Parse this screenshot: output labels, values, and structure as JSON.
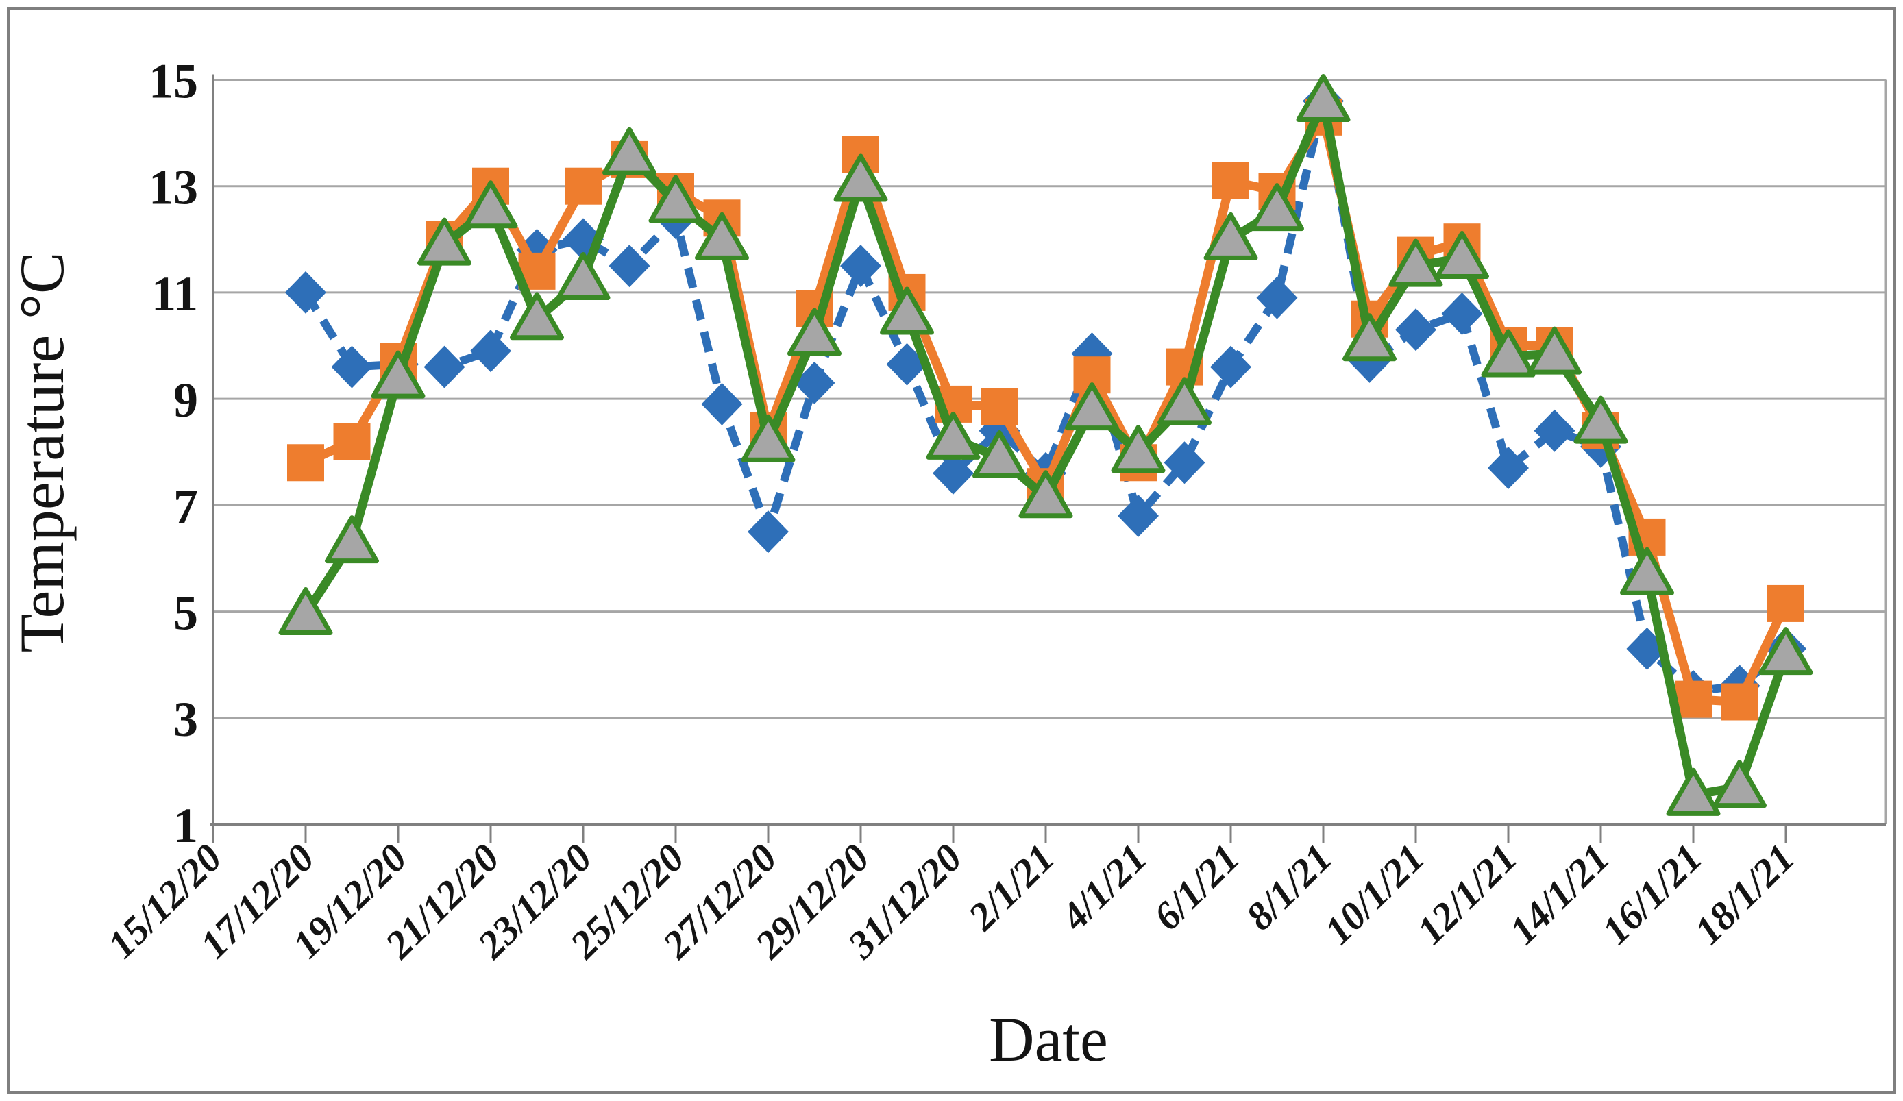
{
  "chart_data": {
    "type": "line",
    "title": "",
    "xlabel": "Date",
    "ylabel": "Temperature °C",
    "ylim": [
      1,
      15
    ],
    "y_ticks": [
      1,
      3,
      5,
      7,
      9,
      11,
      13,
      15
    ],
    "grid": true,
    "legend": false,
    "x_tick_labels": [
      "15/12/20",
      "17/12/20",
      "19/12/20",
      "21/12/20",
      "23/12/20",
      "25/12/20",
      "27/12/20",
      "29/12/20",
      "31/12/20",
      "2/1/21",
      "4/1/21",
      "6/1/21",
      "8/1/21",
      "10/1/21",
      "12/1/21",
      "14/1/21",
      "16/1/21",
      "18/1/21"
    ],
    "dates": [
      "17/12/20",
      "18/12/20",
      "19/12/20",
      "20/12/20",
      "21/12/20",
      "22/12/20",
      "23/12/20",
      "24/12/20",
      "25/12/20",
      "26/12/20",
      "27/12/20",
      "28/12/20",
      "29/12/20",
      "30/12/20",
      "31/12/20",
      "1/1/21",
      "2/1/21",
      "3/1/21",
      "4/1/21",
      "5/1/21",
      "6/1/21",
      "7/1/21",
      "8/1/21",
      "9/1/21",
      "10/1/21",
      "11/1/21",
      "12/1/21",
      "13/1/21",
      "14/1/21",
      "15/1/21",
      "16/1/21",
      "17/1/21",
      "18/1/21"
    ],
    "series": [
      {
        "name": "blue-dashed-diamond",
        "marker": "diamond",
        "color": "#2E6FB8",
        "line_style": "dashed",
        "values": [
          11.0,
          9.6,
          9.65,
          9.6,
          9.9,
          11.8,
          12.0,
          11.5,
          12.4,
          8.9,
          6.5,
          9.3,
          11.5,
          9.65,
          7.6,
          8.4,
          7.6,
          9.85,
          6.8,
          7.8,
          9.6,
          10.9,
          14.6,
          9.7,
          10.3,
          10.6,
          7.7,
          8.4,
          8.1,
          4.3,
          3.5,
          3.6,
          4.3
        ]
      },
      {
        "name": "orange-square",
        "marker": "square",
        "color": "#EE7D2E",
        "line_style": "solid",
        "values": [
          7.8,
          8.2,
          9.7,
          12.0,
          13.0,
          11.4,
          13.0,
          13.5,
          12.9,
          12.4,
          8.4,
          10.7,
          13.6,
          11.0,
          8.9,
          8.85,
          7.35,
          9.45,
          7.8,
          9.6,
          13.1,
          12.9,
          14.3,
          10.5,
          11.7,
          11.95,
          10.0,
          10.0,
          8.4,
          6.4,
          3.35,
          3.3,
          5.15
        ]
      },
      {
        "name": "green-triangle",
        "marker": "triangle",
        "color": "#3A8A26",
        "marker_fill": "#A6A6A6",
        "line_style": "solid",
        "values": [
          4.95,
          6.3,
          9.4,
          11.9,
          12.6,
          10.5,
          11.25,
          13.6,
          12.7,
          12.0,
          8.2,
          10.2,
          13.1,
          10.6,
          8.25,
          7.9,
          7.15,
          8.8,
          8.0,
          8.9,
          12.0,
          12.55,
          14.6,
          10.1,
          11.5,
          11.65,
          9.8,
          9.85,
          8.55,
          5.7,
          1.55,
          1.7,
          4.2
        ]
      }
    ],
    "colors": {
      "gridline": "#A6A6A6",
      "axis": "#808080",
      "text": "#141414",
      "frame_border": "#7F7F7F"
    }
  }
}
